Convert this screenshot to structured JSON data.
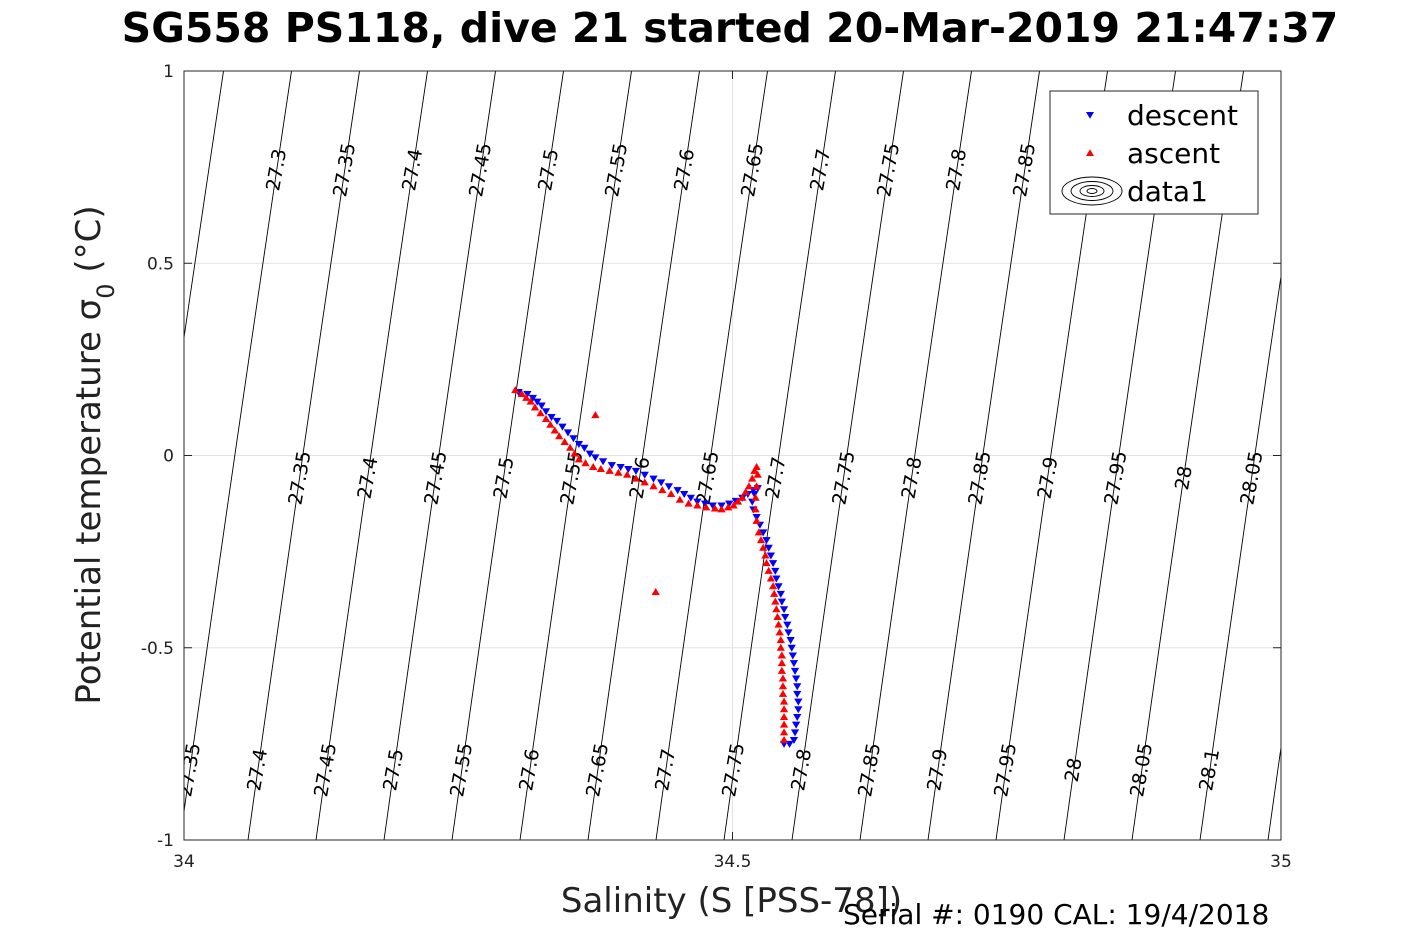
{
  "title": "SG558 PS118, dive 21 started 20-Mar-2019 21:47:37",
  "footer": "Serial #: 0190  CAL: 19/4/2018",
  "chart_data": {
    "type": "scatter",
    "xlabel": "Salinity (S [PSS-78])",
    "ylabel": "Potential temperature σ",
    "ylabel_subscript": "0",
    "ylabel_unit": " (°C)",
    "xlim": [
      34,
      35
    ],
    "ylim": [
      -1,
      1
    ],
    "x_ticks": [
      34,
      34.5,
      35
    ],
    "x_tick_labels": [
      "34",
      "34.5",
      "35"
    ],
    "y_ticks": [
      -1,
      -0.5,
      0,
      0.5,
      1
    ],
    "y_tick_labels": [
      "-1",
      "-0.5",
      "0",
      "0.5",
      "1"
    ],
    "grid": true,
    "legend_position": "top-right",
    "contours": {
      "name": "data1",
      "levels_top": [
        "27.3",
        "27.35",
        "27.4",
        "27.45",
        "27.5",
        "27.55",
        "27.6",
        "27.65",
        "27.7",
        "27.75",
        "27.8",
        "27.85",
        "27.9",
        "27.95",
        "28",
        "28.05"
      ],
      "levels_mid": [
        "27.35",
        "27.4",
        "27.45",
        "27.5",
        "27.55",
        "27.6",
        "27.65",
        "27.7",
        "27.75",
        "27.8",
        "27.85",
        "27.9",
        "27.95",
        "28",
        "28.05",
        "28.1"
      ],
      "levels_bot": [
        "27.35",
        "27.4",
        "27.45",
        "27.5",
        "27.55",
        "27.6",
        "27.65",
        "27.7",
        "27.75",
        "27.8",
        "27.85",
        "27.9",
        "27.95",
        "28",
        "28.05",
        "28.1"
      ]
    },
    "series": [
      {
        "name": "descent",
        "color": "#0000ff",
        "marker": "triangle-down",
        "points": [
          [
            34.305,
            0.165
          ],
          [
            34.313,
            0.16
          ],
          [
            34.318,
            0.15
          ],
          [
            34.322,
            0.14
          ],
          [
            34.326,
            0.13
          ],
          [
            34.33,
            0.115
          ],
          [
            34.335,
            0.1
          ],
          [
            34.34,
            0.09
          ],
          [
            34.345,
            0.075
          ],
          [
            34.35,
            0.06
          ],
          [
            34.355,
            0.045
          ],
          [
            34.36,
            0.03
          ],
          [
            34.365,
            0.02
          ],
          [
            34.37,
            0.005
          ],
          [
            34.375,
            -0.005
          ],
          [
            34.382,
            -0.015
          ],
          [
            34.39,
            -0.025
          ],
          [
            34.398,
            -0.03
          ],
          [
            34.405,
            -0.035
          ],
          [
            34.412,
            -0.04
          ],
          [
            34.42,
            -0.05
          ],
          [
            34.428,
            -0.06
          ],
          [
            34.435,
            -0.07
          ],
          [
            34.442,
            -0.08
          ],
          [
            34.45,
            -0.09
          ],
          [
            34.456,
            -0.1
          ],
          [
            34.462,
            -0.11
          ],
          [
            34.468,
            -0.12
          ],
          [
            34.475,
            -0.125
          ],
          [
            34.482,
            -0.13
          ],
          [
            34.49,
            -0.13
          ],
          [
            34.497,
            -0.125
          ],
          [
            34.503,
            -0.118
          ],
          [
            34.509,
            -0.11
          ],
          [
            34.514,
            -0.1
          ],
          [
            34.519,
            -0.09
          ],
          [
            34.523,
            -0.085
          ],
          [
            34.52,
            -0.1
          ],
          [
            34.518,
            -0.12
          ],
          [
            34.519,
            -0.14
          ],
          [
            34.522,
            -0.16
          ],
          [
            34.525,
            -0.18
          ],
          [
            34.528,
            -0.2
          ],
          [
            34.531,
            -0.22
          ],
          [
            34.533,
            -0.24
          ],
          [
            34.535,
            -0.26
          ],
          [
            34.537,
            -0.28
          ],
          [
            34.539,
            -0.3
          ],
          [
            34.54,
            -0.32
          ],
          [
            34.542,
            -0.34
          ],
          [
            34.544,
            -0.36
          ],
          [
            34.545,
            -0.38
          ],
          [
            34.547,
            -0.4
          ],
          [
            34.548,
            -0.42
          ],
          [
            34.55,
            -0.44
          ],
          [
            34.551,
            -0.46
          ],
          [
            34.553,
            -0.48
          ],
          [
            34.554,
            -0.5
          ],
          [
            34.555,
            -0.52
          ],
          [
            34.556,
            -0.54
          ],
          [
            34.557,
            -0.56
          ],
          [
            34.558,
            -0.58
          ],
          [
            34.559,
            -0.6
          ],
          [
            34.559,
            -0.62
          ],
          [
            34.56,
            -0.64
          ],
          [
            34.56,
            -0.66
          ],
          [
            34.559,
            -0.68
          ],
          [
            34.558,
            -0.7
          ],
          [
            34.557,
            -0.72
          ],
          [
            34.556,
            -0.74
          ],
          [
            34.552,
            -0.75
          ],
          [
            34.547,
            -0.75
          ]
        ]
      },
      {
        "name": "ascent",
        "color": "#ff0000",
        "marker": "triangle-up",
        "points": [
          [
            34.302,
            0.17
          ],
          [
            34.308,
            0.16
          ],
          [
            34.312,
            0.15
          ],
          [
            34.316,
            0.14
          ],
          [
            34.32,
            0.125
          ],
          [
            34.325,
            0.11
          ],
          [
            34.33,
            0.095
          ],
          [
            34.334,
            0.08
          ],
          [
            34.338,
            0.065
          ],
          [
            34.342,
            0.05
          ],
          [
            34.347,
            0.035
          ],
          [
            34.352,
            0.02
          ],
          [
            34.356,
            0.005
          ],
          [
            34.36,
            -0.01
          ],
          [
            34.366,
            -0.02
          ],
          [
            34.373,
            -0.03
          ],
          [
            34.38,
            -0.035
          ],
          [
            34.388,
            -0.04
          ],
          [
            34.396,
            -0.045
          ],
          [
            34.404,
            -0.05
          ],
          [
            34.412,
            -0.06
          ],
          [
            34.42,
            -0.07
          ],
          [
            34.428,
            -0.08
          ],
          [
            34.436,
            -0.09
          ],
          [
            34.444,
            -0.1
          ],
          [
            34.452,
            -0.115
          ],
          [
            34.46,
            -0.125
          ],
          [
            34.468,
            -0.13
          ],
          [
            34.476,
            -0.135
          ],
          [
            34.484,
            -0.138
          ],
          [
            34.49,
            -0.14
          ],
          [
            34.496,
            -0.135
          ],
          [
            34.501,
            -0.13
          ],
          [
            34.505,
            -0.12
          ],
          [
            34.509,
            -0.11
          ],
          [
            34.512,
            -0.095
          ],
          [
            34.515,
            -0.08
          ],
          [
            34.518,
            -0.06
          ],
          [
            34.52,
            -0.04
          ],
          [
            34.522,
            -0.03
          ],
          [
            34.523,
            -0.05
          ],
          [
            34.522,
            -0.08
          ],
          [
            34.521,
            -0.11
          ],
          [
            34.521,
            -0.14
          ],
          [
            34.522,
            -0.17
          ],
          [
            34.524,
            -0.2
          ],
          [
            34.526,
            -0.22
          ],
          [
            34.528,
            -0.24
          ],
          [
            34.53,
            -0.26
          ],
          [
            34.531,
            -0.28
          ],
          [
            34.533,
            -0.3
          ],
          [
            34.535,
            -0.32
          ],
          [
            34.537,
            -0.34
          ],
          [
            34.538,
            -0.36
          ],
          [
            34.539,
            -0.38
          ],
          [
            34.54,
            -0.4
          ],
          [
            34.541,
            -0.42
          ],
          [
            34.542,
            -0.44
          ],
          [
            34.543,
            -0.46
          ],
          [
            34.544,
            -0.48
          ],
          [
            34.544,
            -0.5
          ],
          [
            34.545,
            -0.52
          ],
          [
            34.545,
            -0.54
          ],
          [
            34.545,
            -0.56
          ],
          [
            34.546,
            -0.58
          ],
          [
            34.546,
            -0.6
          ],
          [
            34.546,
            -0.62
          ],
          [
            34.547,
            -0.64
          ],
          [
            34.547,
            -0.66
          ],
          [
            34.547,
            -0.68
          ],
          [
            34.547,
            -0.7
          ],
          [
            34.547,
            -0.72
          ],
          [
            34.547,
            -0.74
          ],
          [
            34.375,
            0.105
          ],
          [
            34.43,
            -0.355
          ]
        ]
      }
    ]
  }
}
